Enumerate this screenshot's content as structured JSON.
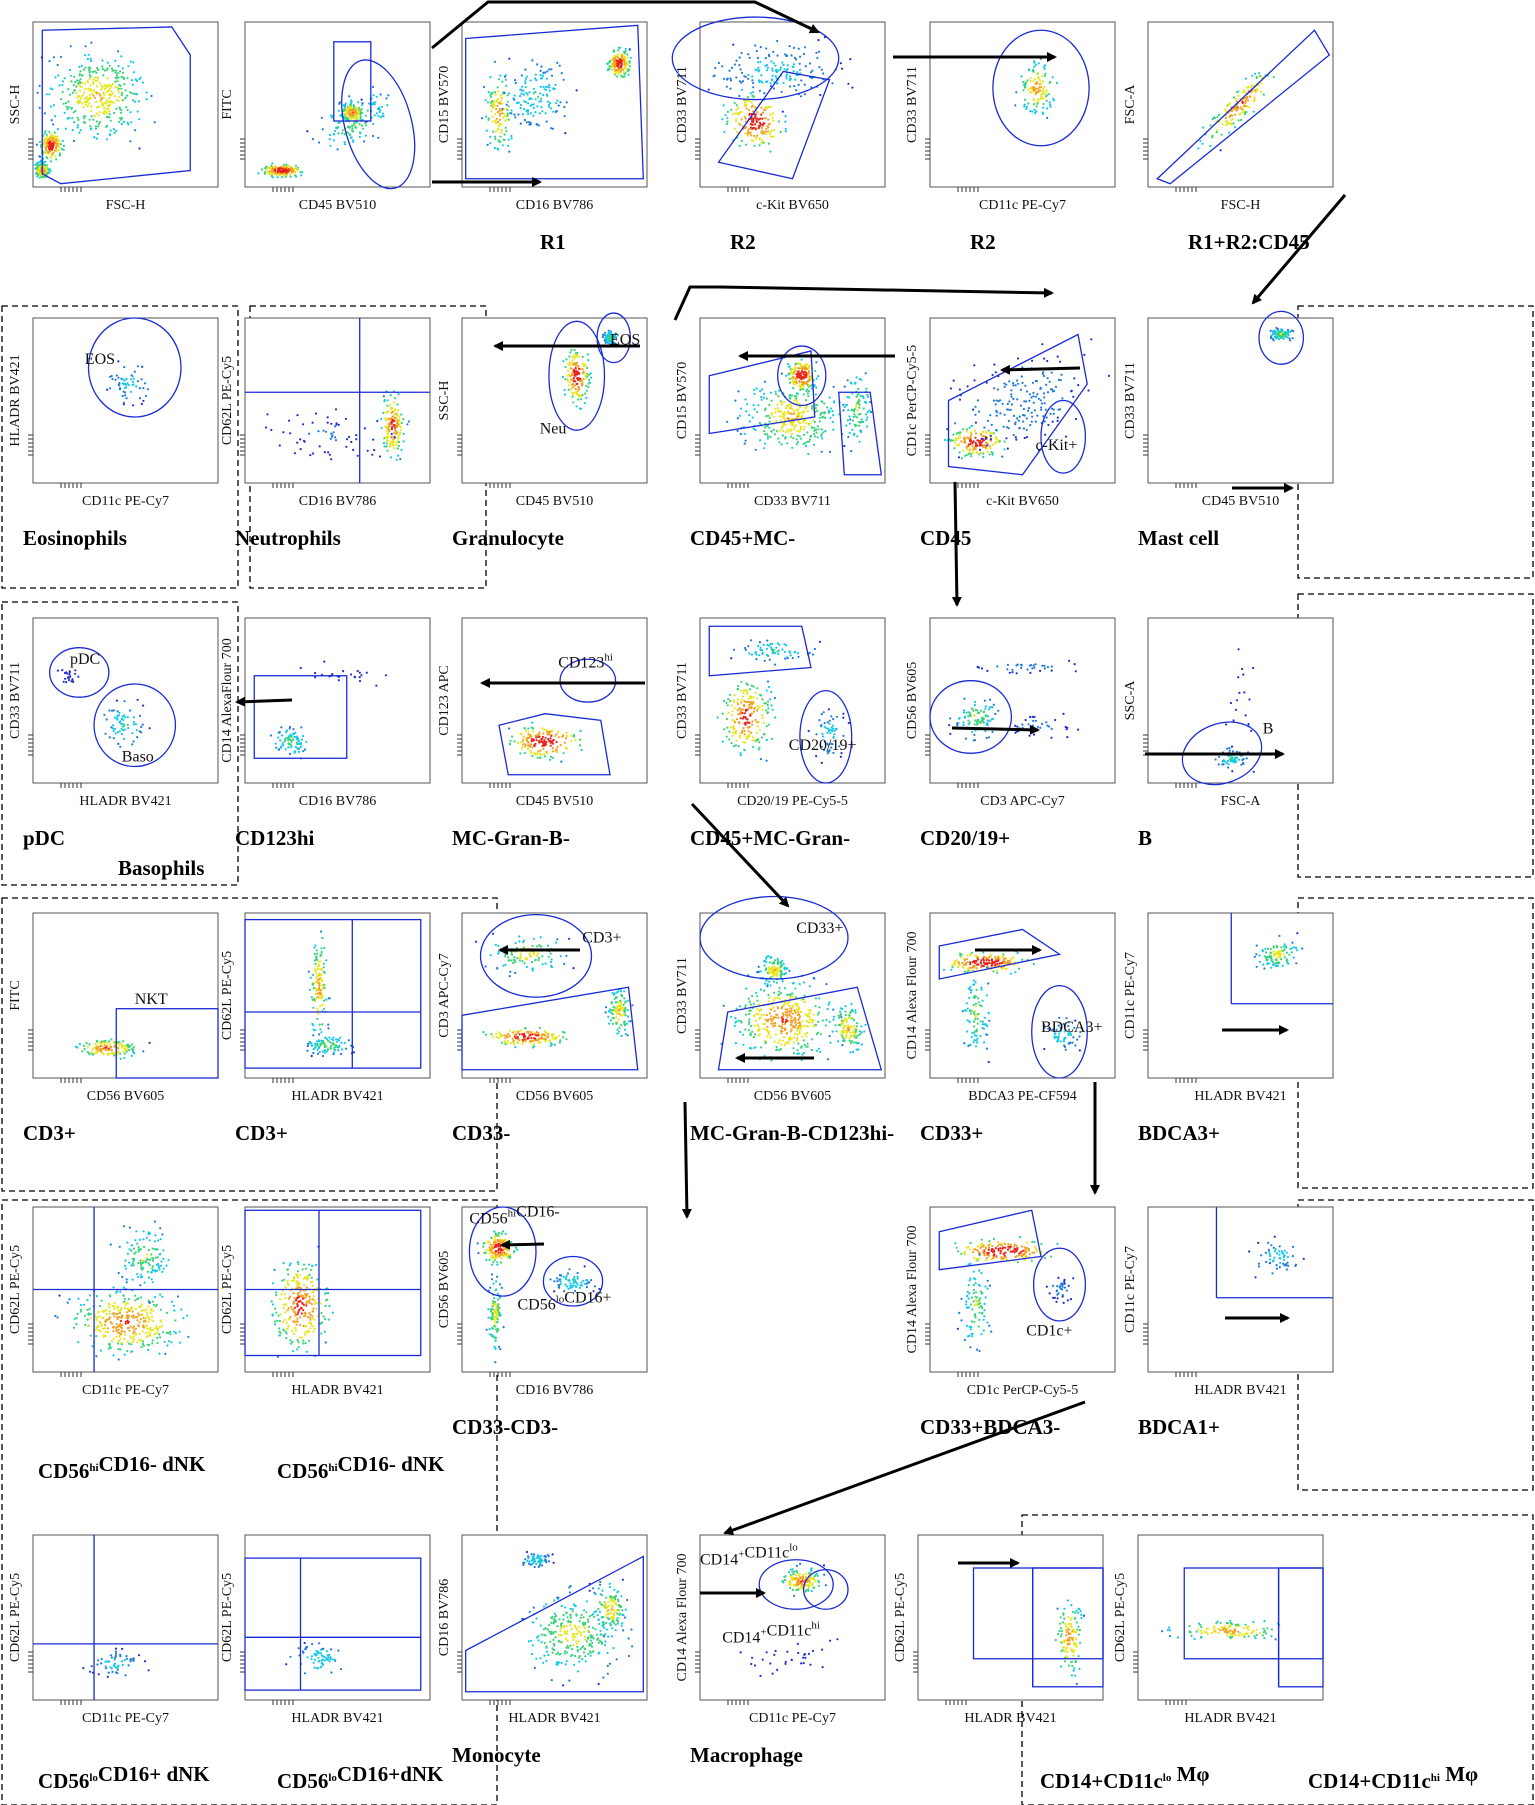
{
  "title": "",
  "plots": [
    {
      "id": "p-fsc-ssc",
      "x": "FSC-H",
      "y": "SSC-H",
      "caption": ""
    },
    {
      "id": "p-cd45-fitc",
      "x": "CD45 BV510",
      "y": "FITC",
      "caption": ""
    },
    {
      "id": "p-r1",
      "x": "CD16 BV786",
      "y": "CD15 BV570",
      "caption": "R1"
    },
    {
      "id": "p-r2a",
      "x": "c-Kit BV650",
      "y": "CD33 BV711",
      "caption": "R2"
    },
    {
      "id": "p-r2b",
      "x": "CD11c PE-Cy7",
      "y": "CD33 BV711",
      "caption": "R2"
    },
    {
      "id": "p-r1r2",
      "x": "FSC-H",
      "y": "FSC-A",
      "caption": "R1+R2:CD45"
    },
    {
      "id": "p-eos",
      "x": "CD11c PE-Cy7",
      "y": "HLADR BV421",
      "caption": "Eosinophils"
    },
    {
      "id": "p-neutro",
      "x": "CD16 BV786",
      "y": "CD62L PE-Cy5",
      "caption": "Neutrophils"
    },
    {
      "id": "p-granulo",
      "x": "CD45 BV510",
      "y": "SSC-H",
      "caption": "Granulocyte"
    },
    {
      "id": "p-cd45mc",
      "x": "CD33 BV711",
      "y": "CD15 BV570",
      "caption": "CD45+MC-"
    },
    {
      "id": "p-cd45",
      "x": "c-Kit BV650",
      "y": "CD1c PerCP-Cy5-5",
      "caption": "CD45"
    },
    {
      "id": "p-mast",
      "x": "CD45 BV510",
      "y": "CD33 BV711",
      "caption": "Mast cell"
    },
    {
      "id": "p-pdc",
      "x": "HLADR BV421",
      "y": "CD33 BV711",
      "caption": "pDC"
    },
    {
      "id": "p-cd123hi",
      "x": "CD16 BV786",
      "y": "CD14 AlexaFlour 700",
      "caption": "CD123hi"
    },
    {
      "id": "p-mcgranb",
      "x": "CD45 BV510",
      "y": "CD123 APC",
      "caption": "MC-Gran-B-"
    },
    {
      "id": "p-cd45mcgran",
      "x": "CD20/19 PE-Cy5-5",
      "y": "CD33 BV711",
      "caption": "CD45+MC-Gran-"
    },
    {
      "id": "p-cd2019",
      "x": "CD3 APC-Cy7",
      "y": "CD56 BV605",
      "caption": "CD20/19+"
    },
    {
      "id": "p-b",
      "x": "FSC-A",
      "y": "SSC-A",
      "caption": "B"
    },
    {
      "id": "p-nkt",
      "x": "CD56 BV605",
      "y": "FITC",
      "caption": "CD3+"
    },
    {
      "id": "p-cd3b",
      "x": "HLADR BV421",
      "y": "CD62L PE-Cy5",
      "caption": "CD3+"
    },
    {
      "id": "p-cd33neg",
      "x": "CD56 BV605",
      "y": "CD3 APC-Cy7",
      "caption": "CD33-"
    },
    {
      "id": "p-mcgranbcd",
      "x": "CD56 BV605",
      "y": "CD33 BV711",
      "caption": "MC-Gran-B-CD123hi-"
    },
    {
      "id": "p-cd33pos",
      "x": "BDCA3 PE-CF594",
      "y": "CD14 Alexa Flour 700",
      "caption": "CD33+"
    },
    {
      "id": "p-bdca3",
      "x": "HLADR BV421",
      "y": "CD11c PE-Cy7",
      "caption": "BDCA3+"
    },
    {
      "id": "p-dnk1",
      "x": "CD11c PE-Cy7",
      "y": "CD62L PE-Cy5",
      "caption": ""
    },
    {
      "id": "p-dnk2",
      "x": "HLADR BV421",
      "y": "CD62L PE-Cy5",
      "caption": ""
    },
    {
      "id": "p-cd33cd3",
      "x": "CD16 BV786",
      "y": "CD56 BV605",
      "caption": "CD33-CD3-"
    },
    {
      "id": "p-cd33bdca3",
      "x": "CD1c PerCP-Cy5-5",
      "y": "CD14 Alexa Flour 700",
      "caption": "CD33+BDCA3-"
    },
    {
      "id": "p-bdca1",
      "x": "HLADR BV421",
      "y": "CD11c PE-Cy7",
      "caption": "BDCA1+"
    },
    {
      "id": "p-dnklo1",
      "x": "CD11c PE-Cy7",
      "y": "CD62L PE-Cy5",
      "caption": ""
    },
    {
      "id": "p-dnklo2",
      "x": "HLADR BV421",
      "y": "CD62L PE-Cy5",
      "caption": ""
    },
    {
      "id": "p-mono",
      "x": "HLADR BV421",
      "y": "CD16 BV786",
      "caption": "Monocyte"
    },
    {
      "id": "p-macro",
      "x": "CD11c PE-Cy7",
      "y": "CD14 Alexa Flour 700",
      "caption": "Macrophage"
    },
    {
      "id": "p-mphlo",
      "x": "HLADR BV421",
      "y": "CD62L PE-Cy5",
      "caption": ""
    },
    {
      "id": "p-mphhi",
      "x": "HLADR BV421",
      "y": "CD62L PE-Cy5",
      "caption": ""
    }
  ],
  "captions_extra": {
    "basophils": "Basophils",
    "dnk_hi_1": {
      "pre": "CD56",
      "sup": "hi",
      "post": "CD16- dNK"
    },
    "dnk_hi_2": {
      "pre": "CD56",
      "sup": "hi",
      "post": "CD16- dNK"
    },
    "dnk_lo_1": {
      "pre": "CD56",
      "sup": "lo",
      "post": "CD16+ dNK"
    },
    "dnk_lo_2": {
      "pre": "CD56",
      "sup": "lo",
      "post": "CD16+dNK"
    },
    "mph_lo": {
      "pre": "CD14+CD11c",
      "sup": "lo",
      "post": " Mφ"
    },
    "mph_hi": {
      "pre": "CD14+CD11c",
      "sup": "hi",
      "post": " Mφ"
    }
  },
  "gate_labels": {
    "eos1": "EOS",
    "eos2": "EOS",
    "neu": "Neu",
    "ckit": "c-Kit+",
    "pdc": "pDC",
    "baso": "Baso",
    "cd2019": "CD20/19+",
    "b": "B",
    "nkt": "NKT",
    "cd3": "CD3+",
    "cd33": "CD33+",
    "bdca3": "BDCA3+",
    "cd1c": "CD1c+",
    "cd123": {
      "pre": "CD123",
      "sup": "hi"
    },
    "cd56hi": {
      "pre": "CD56",
      "sup": "hi",
      "post": "CD16-"
    },
    "cd56lo": {
      "pre": "CD56",
      "sup": "lo",
      "post": "CD16+"
    },
    "cd14lo": {
      "pre": "CD14",
      "sup1": "+",
      "mid": "CD11c",
      "sup2": "lo"
    },
    "cd14hi": {
      "pre": "CD14",
      "sup1": "+",
      "mid": "CD11c",
      "sup2": "hi"
    }
  },
  "colors": {
    "gate": "#1a2bd6",
    "dot_low": "#1f2fd0",
    "dot_mid": "#12c8e8",
    "dot_hot": "#e8231a"
  }
}
